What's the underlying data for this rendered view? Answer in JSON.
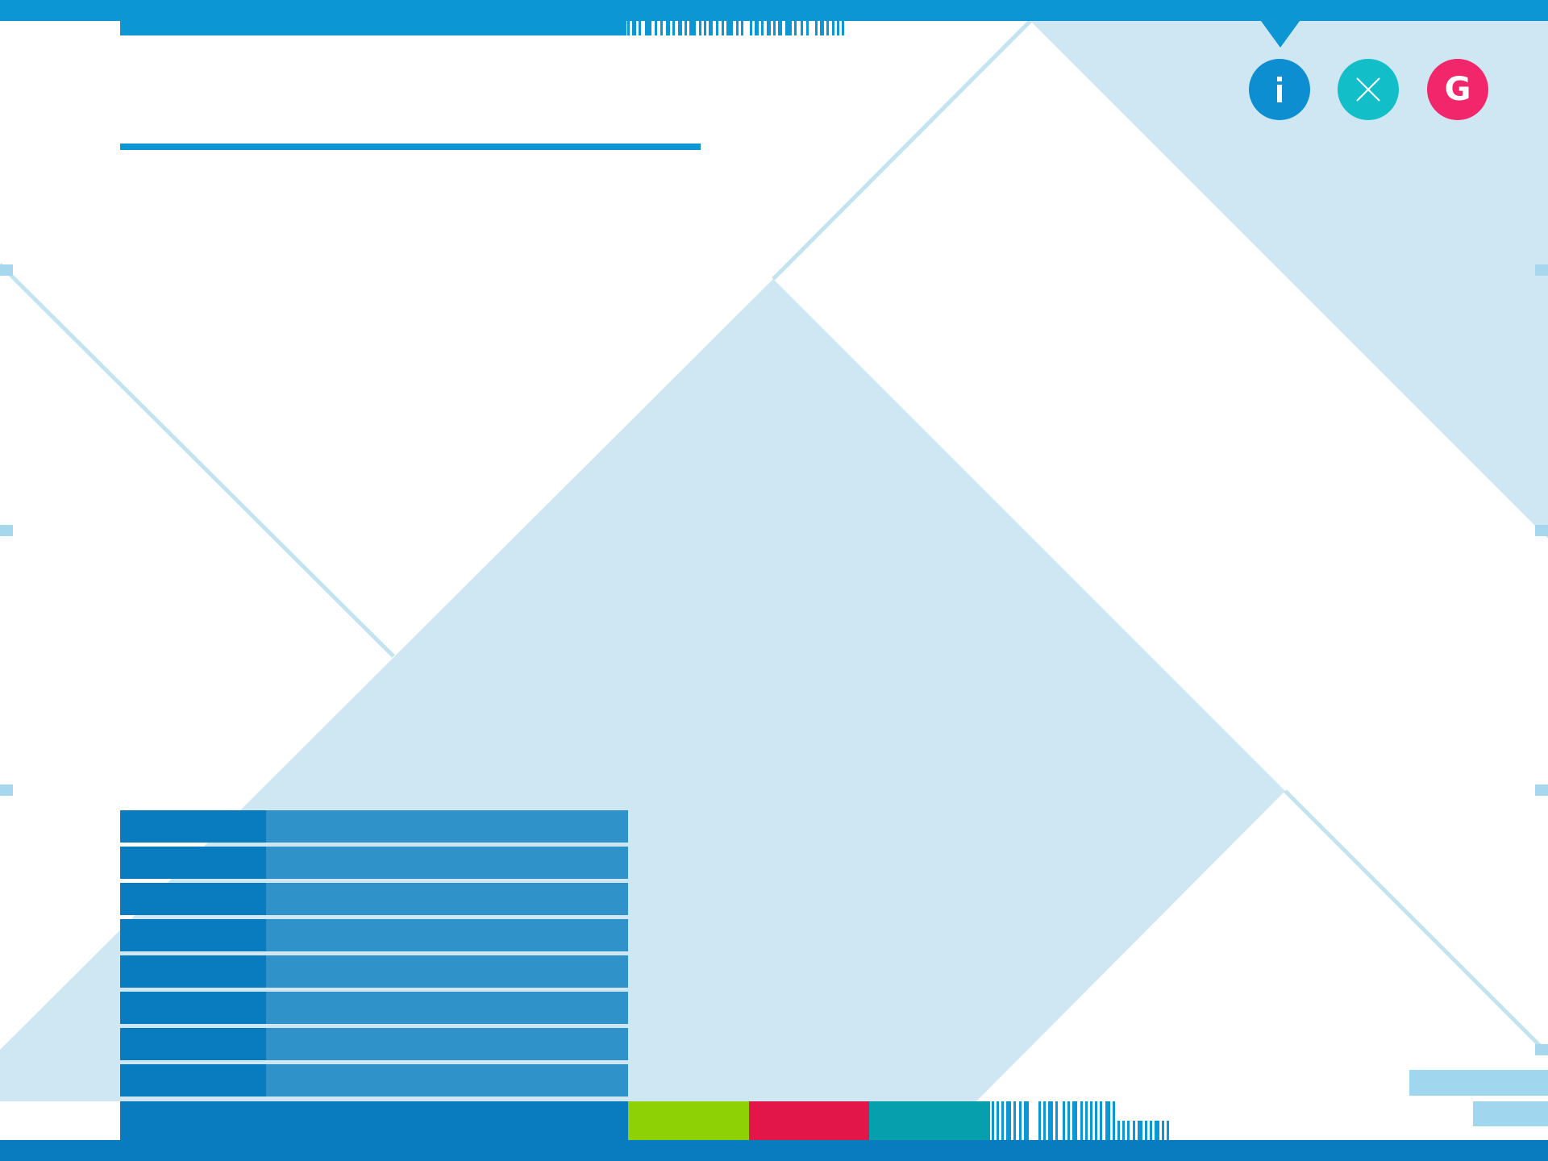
{
  "app": {
    "title": ""
  },
  "theme": {
    "primary": "#0c96d4",
    "deep_blue": "#087cbe",
    "mid_blue": "#2f92c8",
    "pale_blue": "#cfe7f2",
    "line_blue": "#c3e3f1"
  },
  "header": {
    "title": "",
    "subtitle": ""
  },
  "toolbar": {
    "buttons": [
      {
        "name": "info",
        "icon": "info-icon",
        "glyph": "i",
        "color": "#0c8ed0"
      },
      {
        "name": "close",
        "icon": "close-icon",
        "glyph": "✕",
        "color": "#12bfc9"
      },
      {
        "name": "g",
        "icon": "g-logo-icon",
        "glyph": "G",
        "color": "#f1266b"
      }
    ]
  },
  "list": {
    "rows": [
      {
        "label": "",
        "value": ""
      },
      {
        "label": "",
        "value": ""
      },
      {
        "label": "",
        "value": ""
      },
      {
        "label": "",
        "value": ""
      },
      {
        "label": "",
        "value": ""
      },
      {
        "label": "",
        "value": ""
      },
      {
        "label": "",
        "value": ""
      },
      {
        "label": "",
        "value": ""
      }
    ]
  },
  "footer": {
    "swatches": [
      {
        "name": "green",
        "color": "#8ed104"
      },
      {
        "name": "red",
        "color": "#e3164a"
      },
      {
        "name": "teal",
        "color": "#069fae"
      }
    ]
  }
}
